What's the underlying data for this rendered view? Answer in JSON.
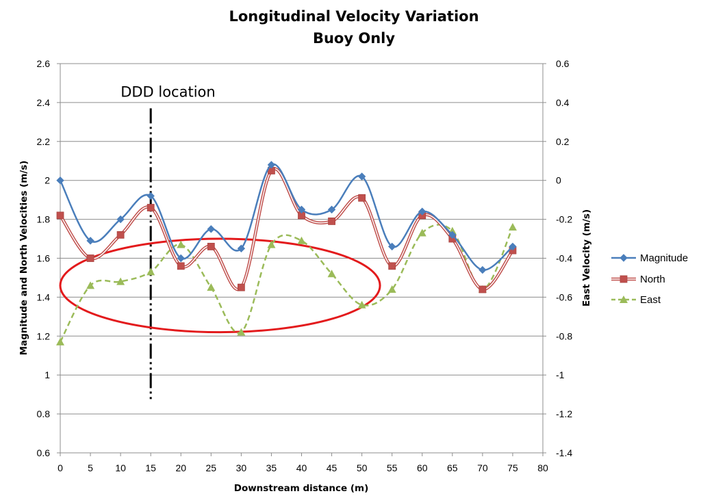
{
  "chart_data": {
    "type": "line",
    "title": "Longitudinal Velocity Variation",
    "subtitle": "Buoy Only",
    "xlabel": "Downstream distance (m)",
    "ylabel": "Magnitude and North Velocities (m/s)",
    "y2label": "East Velocity (m/s)",
    "xlim": [
      0,
      80
    ],
    "ylim": [
      0.6,
      2.6
    ],
    "y2lim": [
      -1.4,
      0.6
    ],
    "x_ticks": [
      "0",
      "5",
      "10",
      "15",
      "20",
      "25",
      "30",
      "35",
      "40",
      "45",
      "50",
      "55",
      "60",
      "65",
      "70",
      "75",
      "80"
    ],
    "y_ticks": [
      "0.6",
      "0.8",
      "1",
      "1.2",
      "1.4",
      "1.6",
      "1.8",
      "2",
      "2.2",
      "2.4",
      "2.6"
    ],
    "y2_ticks": [
      "-1.4",
      "-1.2",
      "-1",
      "-0.8",
      "-0.6",
      "-0.4",
      "-0.2",
      "0",
      "0.2",
      "0.4",
      "0.6"
    ],
    "grid": "horizontal",
    "legend_position": "right",
    "x": [
      0,
      5,
      10,
      15,
      20,
      25,
      30,
      35,
      40,
      45,
      50,
      55,
      60,
      65,
      70,
      75
    ],
    "series": [
      {
        "name": "Magnitude",
        "axis": "left",
        "color": "#4a7ebb",
        "marker": "diamond",
        "line": "solid",
        "values": [
          2.0,
          1.69,
          1.8,
          1.92,
          1.6,
          1.75,
          1.65,
          2.08,
          1.85,
          1.85,
          2.02,
          1.66,
          1.84,
          1.72,
          1.54,
          1.66
        ]
      },
      {
        "name": "North",
        "axis": "left",
        "color": "#c0504d",
        "marker": "square",
        "line": "double",
        "values": [
          1.82,
          1.6,
          1.72,
          1.86,
          1.56,
          1.66,
          1.45,
          2.05,
          1.82,
          1.79,
          1.91,
          1.56,
          1.82,
          1.7,
          1.44,
          1.64
        ]
      },
      {
        "name": "East",
        "axis": "right",
        "color": "#9bbb59",
        "marker": "triangle",
        "line": "dashed",
        "values": [
          -0.83,
          -0.54,
          -0.52,
          -0.47,
          -0.33,
          -0.55,
          -0.78,
          -0.33,
          -0.31,
          -0.48,
          -0.64,
          -0.56,
          -0.27,
          -0.26,
          -0.56,
          -0.24
        ]
      }
    ],
    "annotations": {
      "vline_x": 15,
      "vline_label": "DDD location",
      "ellipse": {
        "center_x": 26.5,
        "center_y": 1.46,
        "half_width_x": 26.5,
        "half_height_y": 0.24,
        "color": "#e31a1c"
      }
    }
  }
}
